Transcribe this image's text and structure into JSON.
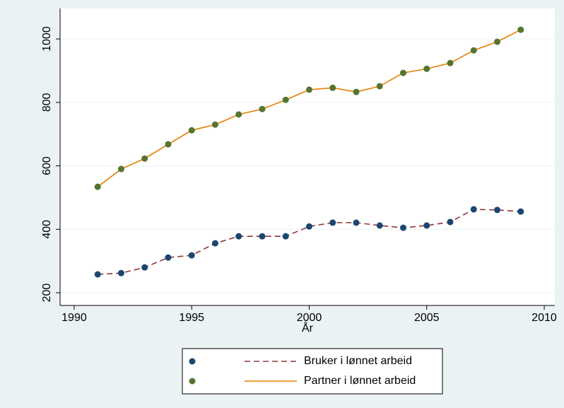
{
  "chart_data": {
    "type": "line",
    "x_label": "År",
    "x": [
      1991,
      1992,
      1993,
      1994,
      1995,
      1996,
      1997,
      1998,
      1999,
      2000,
      2001,
      2002,
      2003,
      2004,
      2005,
      2006,
      2007,
      2008,
      2009
    ],
    "series": [
      {
        "name": "Bruker i lønnet arbeid",
        "color": "#90353b",
        "marker_color": "#1a476f",
        "dash": true,
        "values": [
          258,
          262,
          280,
          311,
          318,
          356,
          378,
          378,
          378,
          409,
          421,
          421,
          412,
          405,
          412,
          423,
          463,
          461,
          456
        ]
      },
      {
        "name": "Partner i lønnet arbeid",
        "color": "#e37e00",
        "marker_color": "#55752f",
        "dash": false,
        "values": [
          534,
          590,
          623,
          668,
          712,
          730,
          762,
          779,
          808,
          840,
          846,
          833,
          851,
          893,
          906,
          924,
          964,
          991,
          1029
        ]
      }
    ],
    "xlim": [
      1989.4,
      2010.45
    ],
    "xticks": [
      1990,
      1995,
      2000,
      2005,
      2010
    ],
    "ylim": [
      160,
      1096
    ],
    "yticks": [
      200,
      400,
      600,
      800,
      1000
    ],
    "grid": true
  }
}
